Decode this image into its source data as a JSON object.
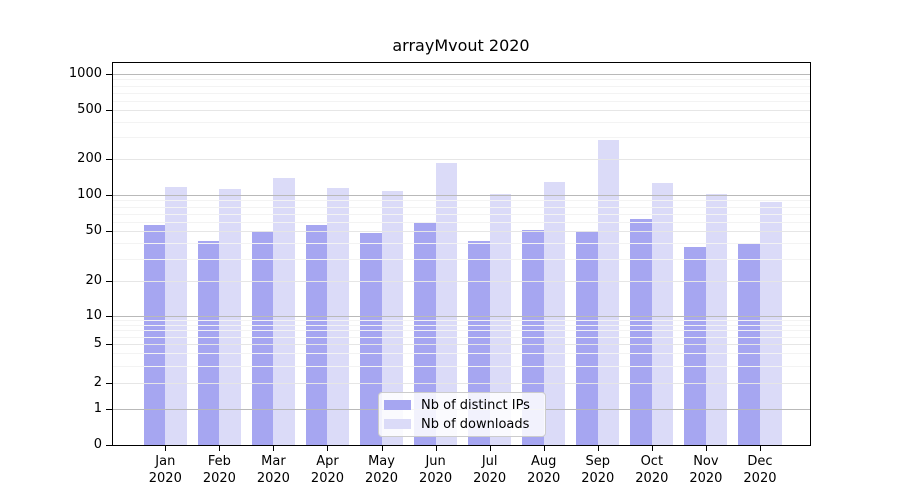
{
  "title": "arrayMvout 2020",
  "colors": {
    "ips": "#a6a6f1",
    "downloads": "#dbdbf8",
    "grid_power": "#b9b9b9",
    "grid_mid": "#e6e6e6",
    "grid_minor": "#f3f3f3",
    "spine": "#000000",
    "legend_border": "#cccccc",
    "text": "#000000",
    "background": "#ffffff"
  },
  "legend": {
    "items": [
      {
        "label": "Nb of distinct IPs",
        "series_key": "ips"
      },
      {
        "label": "Nb of downloads",
        "series_key": "downloads"
      }
    ]
  },
  "chart_data": {
    "type": "bar",
    "title": "arrayMvout 2020",
    "categories": [
      "Jan 2020",
      "Feb 2020",
      "Mar 2020",
      "Apr 2020",
      "May 2020",
      "Jun 2020",
      "Jul 2020",
      "Aug 2020",
      "Sep 2020",
      "Oct 2020",
      "Nov 2020",
      "Dec 2020"
    ],
    "category_line1": [
      "Jan",
      "Feb",
      "Mar",
      "Apr",
      "May",
      "Jun",
      "Jul",
      "Aug",
      "Sep",
      "Oct",
      "Nov",
      "Dec"
    ],
    "category_line2": "2020",
    "series": [
      {
        "name": "Nb of distinct IPs",
        "color_key": "ips",
        "values": [
          56,
          42,
          50,
          56,
          48,
          60,
          42,
          51,
          49,
          63,
          37,
          40
        ]
      },
      {
        "name": "Nb of downloads",
        "color_key": "downloads",
        "values": [
          117,
          112,
          139,
          115,
          109,
          186,
          102,
          129,
          285,
          125,
          102,
          87
        ]
      }
    ],
    "xlabel": "",
    "ylabel": "",
    "yscale": "log-with-zero",
    "ylim": [
      0,
      1400
    ],
    "yticks": [
      0,
      1,
      2,
      5,
      10,
      20,
      50,
      100,
      200,
      500,
      1000
    ],
    "yticks_mid": [
      2,
      5,
      20,
      50,
      200,
      500
    ],
    "yticks_power": [
      1,
      10,
      100,
      1000
    ],
    "yticks_minor": [
      3,
      4,
      6,
      7,
      8,
      9,
      30,
      40,
      60,
      70,
      80,
      90,
      300,
      400,
      600,
      700,
      800,
      900
    ],
    "grid": "on",
    "legend_position": "lower center"
  }
}
